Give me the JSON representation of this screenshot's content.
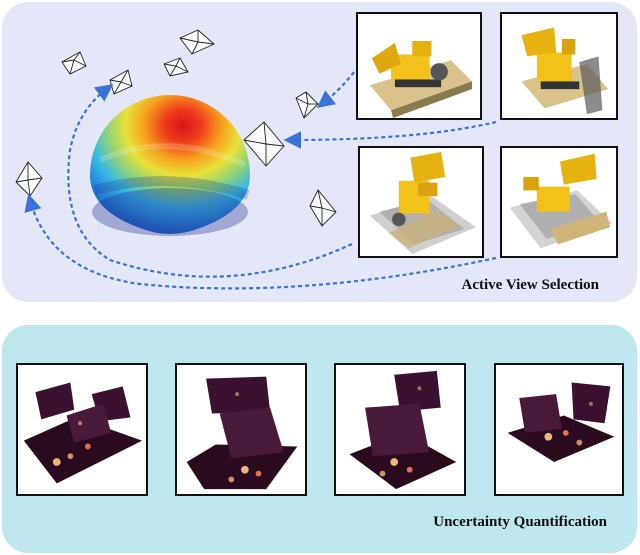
{
  "panels": {
    "top": {
      "title": "Active View Selection"
    },
    "bottom": {
      "title": "Uncertainty Quantification"
    }
  },
  "colors": {
    "top_panel_bg": "#e3e7f8",
    "bottom_panel_bg": "#bfe7ee",
    "arrow": "#3b73d6",
    "sphere_hot": "#d8141a",
    "sphere_cold": "#23338f",
    "heatmap_base": "#2a0a1e",
    "heatmap_glow": "#f2b47a"
  },
  "candidate_views": [
    "render-1",
    "render-2",
    "render-3",
    "render-4"
  ],
  "uncertainty_maps": [
    "uncertainty-1",
    "uncertainty-2",
    "uncertainty-3",
    "uncertainty-4"
  ]
}
